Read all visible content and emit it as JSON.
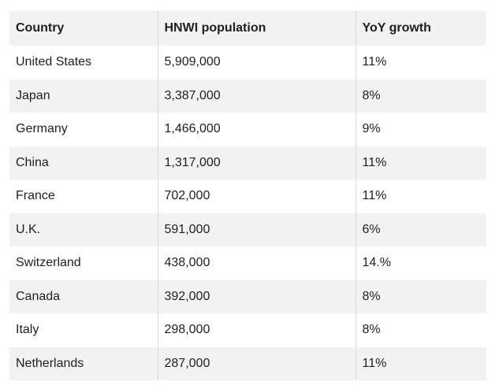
{
  "table": {
    "headers": [
      "Country",
      "HNWI population",
      "YoY growth"
    ],
    "rows": [
      [
        "United States",
        "5,909,000",
        "11%"
      ],
      [
        "Japan",
        "3,387,000",
        "8%"
      ],
      [
        "Germany",
        "1,466,000",
        "9%"
      ],
      [
        "China",
        "1,317,000",
        "11%"
      ],
      [
        "France",
        "702,000",
        "11%"
      ],
      [
        "U.K.",
        "591,000",
        "6%"
      ],
      [
        "Switzerland",
        "438,000",
        "14.%"
      ],
      [
        "Canada",
        "392,000",
        "8%"
      ],
      [
        "Italy",
        "298,000",
        "8%"
      ],
      [
        "Netherlands",
        "287,000",
        "11%"
      ]
    ]
  },
  "colors": {
    "shaded_row": "#f2f2f2",
    "divider": "#d9d9d9",
    "text": "#1f1f1f"
  }
}
